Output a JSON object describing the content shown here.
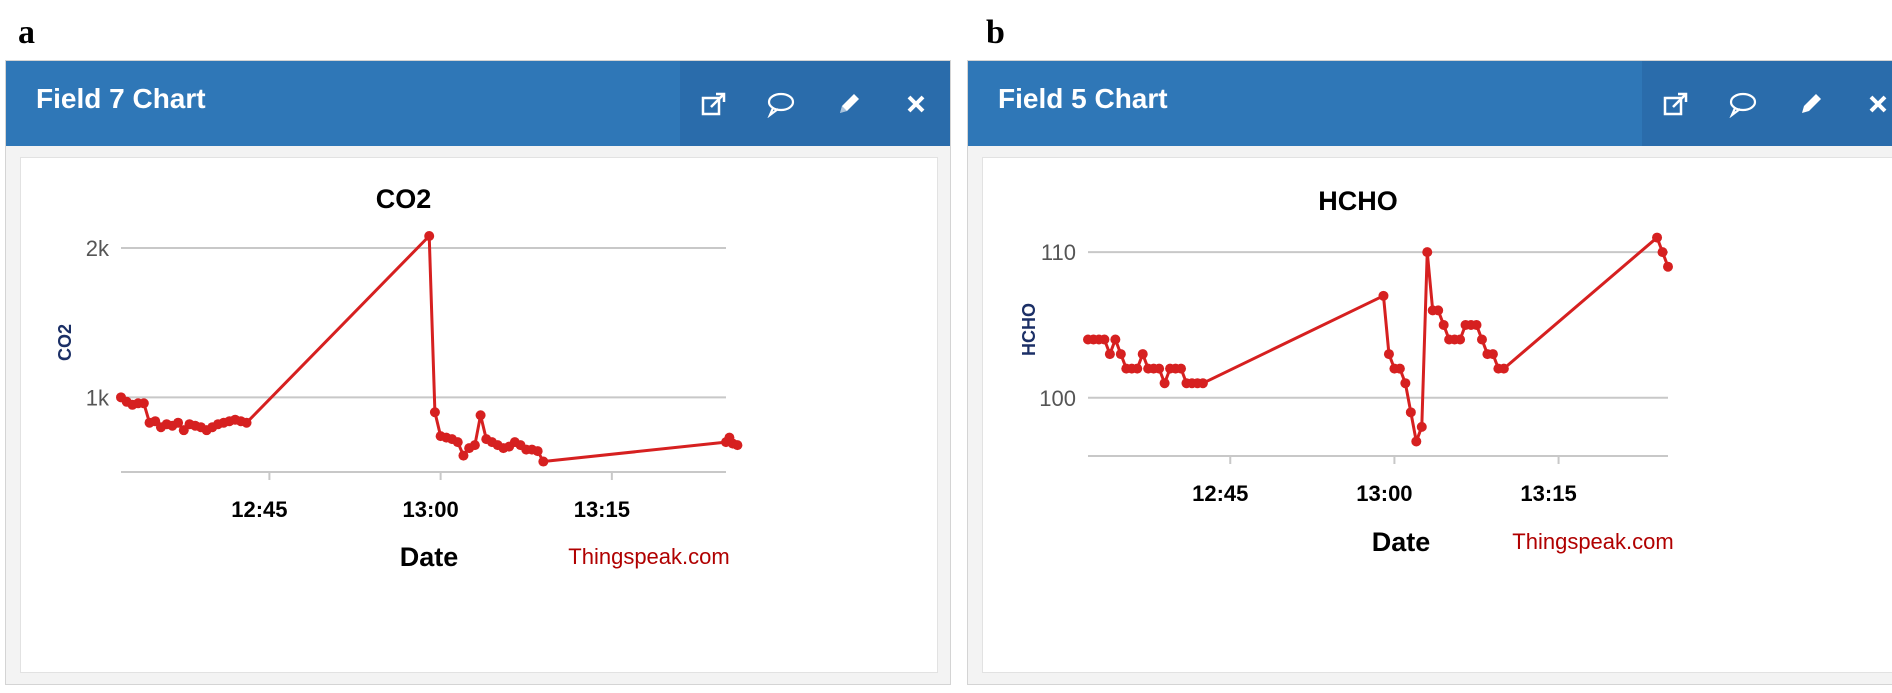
{
  "panels": [
    {
      "letter": "a",
      "header": {
        "title": "Field 7 Chart"
      }
    },
    {
      "letter": "b",
      "header": {
        "title": "Field 5 Chart"
      }
    }
  ],
  "header_icons": [
    "external-link-icon",
    "comment-icon",
    "pencil-icon",
    "close-icon"
  ],
  "colors": {
    "header": "#2f77b7",
    "line": "#d62020",
    "credit": "#b00000",
    "y_axis_title": "#1b2f66"
  },
  "chart_data": [
    {
      "type": "line",
      "title": "CO2",
      "xlabel": "Date",
      "ylabel": "CO2",
      "credit": "Thingspeak.com",
      "x_ticks": [
        "12:45",
        "13:00",
        "13:15"
      ],
      "y_ticks": [
        "1k",
        "2k"
      ],
      "xlim": [
        "12:32",
        "13:25"
      ],
      "ylim": [
        500,
        2100
      ],
      "grid": true,
      "series": [
        {
          "x": [
            "12:32",
            "12:32.5",
            "12:33",
            "12:33.5",
            "12:34",
            "12:34.5",
            "12:35",
            "12:35.5",
            "12:36",
            "12:36.5",
            "12:37",
            "12:37.5",
            "12:38",
            "12:38.5",
            "12:39",
            "12:39.5",
            "12:40",
            "12:40.5",
            "12:41",
            "12:41.5",
            "12:42",
            "12:42.5",
            "12:43",
            "12:59",
            "12:59.5",
            "13:00",
            "13:00.5",
            "13:01",
            "13:01.5",
            "13:02",
            "13:02.5",
            "13:03",
            "13:03.5",
            "13:04",
            "13:04.5",
            "13:05",
            "13:05.5",
            "13:06",
            "13:06.5",
            "13:07",
            "13:07.5",
            "13:08",
            "13:08.5",
            "13:09",
            "13:25",
            "13:25.3",
            "13:25.6",
            "13:26"
          ],
          "values": [
            1000,
            970,
            950,
            960,
            960,
            830,
            840,
            800,
            820,
            810,
            830,
            780,
            820,
            810,
            800,
            780,
            800,
            820,
            830,
            840,
            850,
            840,
            830,
            2080,
            900,
            740,
            730,
            720,
            700,
            610,
            660,
            680,
            880,
            720,
            700,
            680,
            660,
            670,
            700,
            680,
            650,
            650,
            640,
            570,
            700,
            730,
            690,
            680
          ]
        }
      ]
    },
    {
      "type": "line",
      "title": "HCHO",
      "xlabel": "Date",
      "ylabel": "HCHO",
      "credit": "Thingspeak.com",
      "x_ticks": [
        "12:45",
        "13:00",
        "13:15"
      ],
      "y_ticks": [
        "100",
        "110"
      ],
      "xlim": [
        "12:32",
        "13:25"
      ],
      "ylim": [
        96,
        112
      ],
      "grid": true,
      "series": [
        {
          "x": [
            "12:32",
            "12:32.5",
            "12:33",
            "12:33.5",
            "12:34",
            "12:34.5",
            "12:35",
            "12:35.5",
            "12:36",
            "12:36.5",
            "12:37",
            "12:37.5",
            "12:38",
            "12:38.5",
            "12:39",
            "12:39.5",
            "12:40",
            "12:40.5",
            "12:41",
            "12:41.5",
            "12:42",
            "12:42.5",
            "12:59",
            "12:59.5",
            "13:00",
            "13:00.5",
            "13:01",
            "13:01.5",
            "13:02",
            "13:02.5",
            "13:03",
            "13:03.5",
            "13:04",
            "13:04.5",
            "13:05",
            "13:05.5",
            "13:06",
            "13:06.5",
            "13:07",
            "13:07.5",
            "13:08",
            "13:08.5",
            "13:09",
            "13:09.5",
            "13:10",
            "13:24",
            "13:24.5",
            "13:25"
          ],
          "values": [
            104,
            104,
            104,
            104,
            103,
            104,
            103,
            102,
            102,
            102,
            103,
            102,
            102,
            102,
            101,
            102,
            102,
            102,
            101,
            101,
            101,
            101,
            107,
            103,
            102,
            102,
            101,
            99,
            97,
            98,
            110,
            106,
            106,
            105,
            104,
            104,
            104,
            105,
            105,
            105,
            104,
            103,
            103,
            102,
            102,
            111,
            110,
            109
          ]
        }
      ]
    }
  ]
}
